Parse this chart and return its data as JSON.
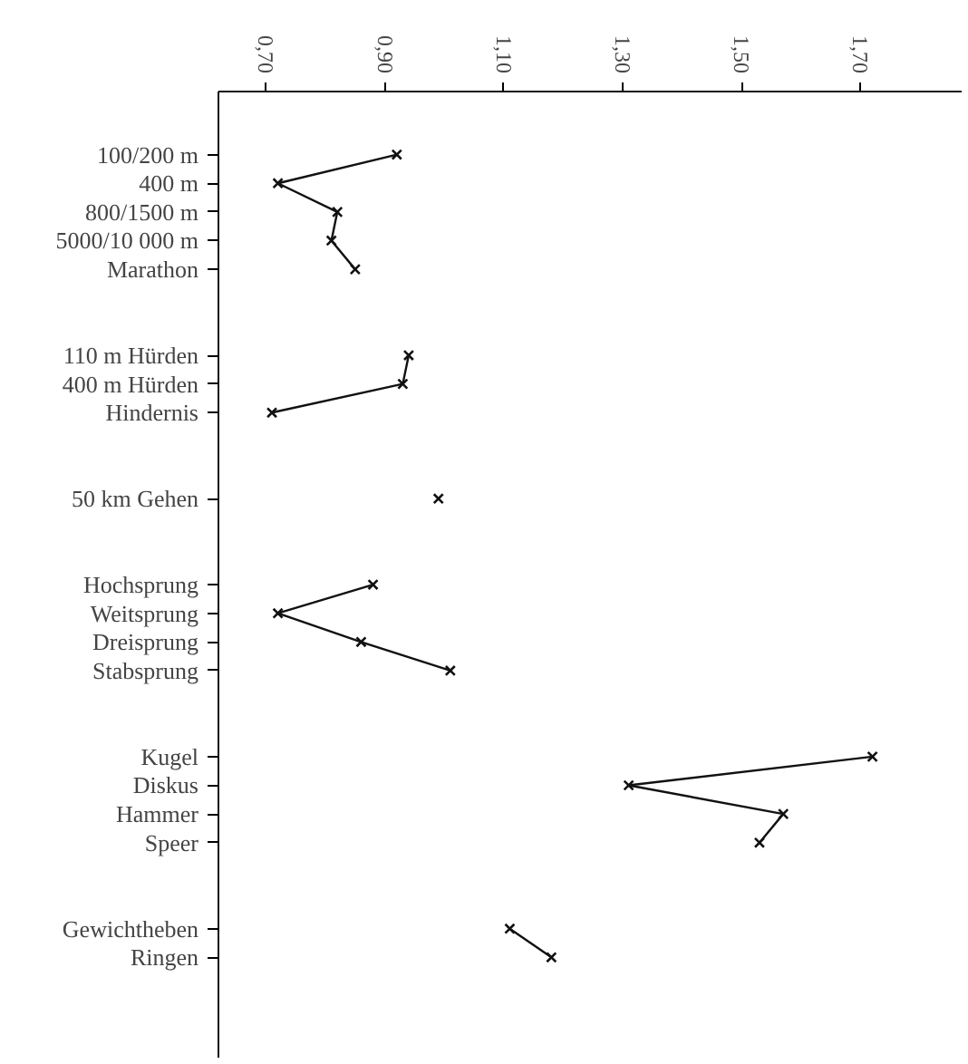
{
  "chart_data": {
    "type": "line",
    "orientation": "horizontal",
    "categories": [
      "100/200 m",
      "400 m",
      "800/1500 m",
      "5000/10 000 m",
      "Marathon",
      null,
      null,
      "110 m Hürden",
      "400 m Hürden",
      "Hindernis",
      null,
      null,
      "50 km Gehen",
      null,
      null,
      "Hochsprung",
      "Weitsprung",
      "Dreisprung",
      "Stabsprung",
      null,
      null,
      "Kugel",
      "Diskus",
      "Hammer",
      "Speer",
      null,
      null,
      "Gewichtheben",
      "Ringen"
    ],
    "series": [
      {
        "color": "#111111",
        "values": [
          0.92,
          0.72,
          0.82,
          0.81,
          0.85,
          null,
          null,
          0.94,
          0.93,
          0.71,
          null,
          null,
          0.99,
          null,
          null,
          0.88,
          0.72,
          0.86,
          1.01,
          null,
          null,
          1.72,
          1.31,
          1.57,
          1.53,
          null,
          null,
          1.11,
          1.18
        ]
      }
    ],
    "xlim": [
      0.62,
      1.87
    ],
    "xticks": [
      {
        "value": 0.7,
        "label": "0,70"
      },
      {
        "value": 0.9,
        "label": "0,90"
      },
      {
        "value": 1.1,
        "label": "1,10"
      },
      {
        "value": 1.3,
        "label": "1,30"
      },
      {
        "value": 1.5,
        "label": "1,50"
      },
      {
        "value": 1.7,
        "label": "1,70"
      }
    ],
    "marker": "cross",
    "line_style": "solid",
    "grid": false
  }
}
